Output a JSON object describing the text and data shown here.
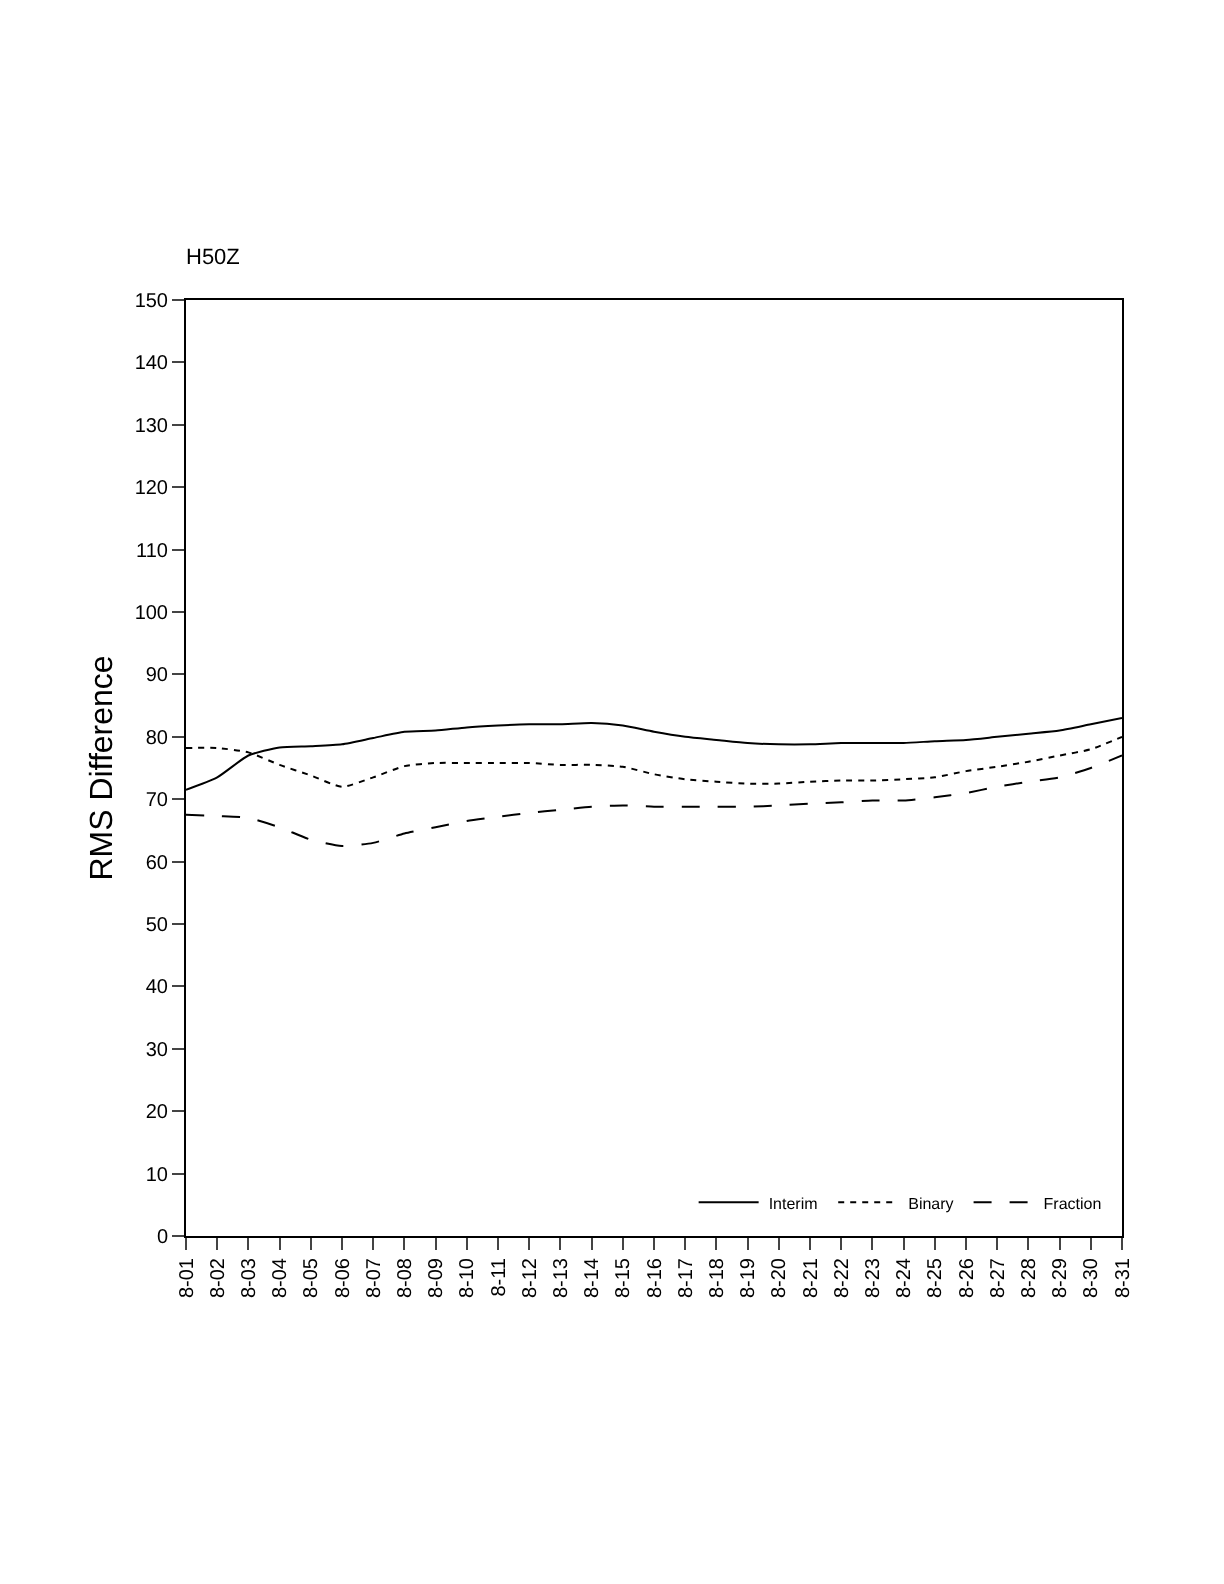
{
  "chart_data": {
    "type": "line",
    "title": "H50Z",
    "ylabel": "RMS Difference",
    "categories": [
      "8-01",
      "8-02",
      "8-03",
      "8-04",
      "8-05",
      "8-06",
      "8-07",
      "8-08",
      "8-09",
      "8-10",
      "8-11",
      "8-12",
      "8-13",
      "8-14",
      "8-15",
      "8-16",
      "8-17",
      "8-18",
      "8-19",
      "8-20",
      "8-21",
      "8-22",
      "8-23",
      "8-24",
      "8-25",
      "8-26",
      "8-27",
      "8-28",
      "8-29",
      "8-30",
      "8-31"
    ],
    "series": [
      {
        "name": "Interim",
        "color": "#000000",
        "line_style": "solid",
        "values": [
          71.5,
          73.5,
          77,
          78.3,
          78.5,
          78.8,
          79.8,
          80.8,
          81,
          81.5,
          81.8,
          82,
          82,
          82.2,
          81.8,
          80.8,
          80,
          79.5,
          79,
          78.8,
          78.8,
          79,
          79,
          79,
          79.3,
          79.5,
          80,
          80.5,
          81,
          82,
          83
        ]
      },
      {
        "name": "Binary",
        "color": "#000000",
        "line_style": "dotted",
        "values": [
          78.2,
          78.2,
          77.5,
          75.5,
          73.8,
          72,
          73.5,
          75.3,
          75.8,
          75.8,
          75.8,
          75.8,
          75.5,
          75.5,
          75.2,
          74,
          73.2,
          72.8,
          72.5,
          72.5,
          72.8,
          73,
          73,
          73.2,
          73.5,
          74.5,
          75.2,
          76,
          77,
          78,
          80
        ]
      },
      {
        "name": "Fraction",
        "color": "#000000",
        "line_style": "dashed",
        "values": [
          67.5,
          67.3,
          67,
          65.5,
          63.5,
          62.5,
          63,
          64.5,
          65.5,
          66.5,
          67.2,
          67.8,
          68.3,
          68.8,
          69,
          68.8,
          68.8,
          68.8,
          68.8,
          69,
          69.3,
          69.5,
          69.8,
          69.8,
          70.3,
          71,
          72,
          72.8,
          73.5,
          75,
          77
        ]
      }
    ],
    "ylim": [
      0,
      150
    ],
    "yticks": [
      0,
      10,
      20,
      30,
      40,
      50,
      60,
      70,
      80,
      90,
      100,
      110,
      120,
      130,
      140,
      150
    ],
    "grid": false,
    "legend": "bottom right",
    "marker": "none"
  }
}
